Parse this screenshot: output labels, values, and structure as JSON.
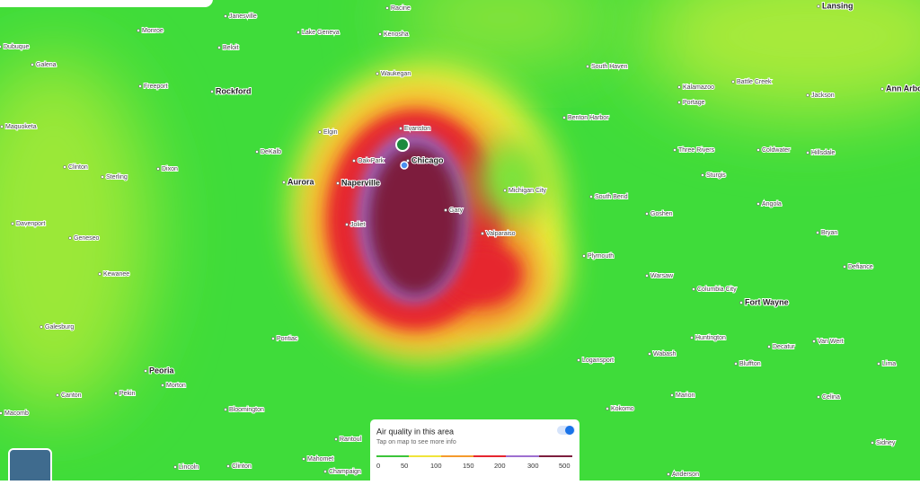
{
  "map": {
    "places": [
      "Janesville",
      "Racine",
      "Lansing",
      "Monroe",
      "Lake Geneva",
      "Kenosha",
      "Dubuque",
      "Beloit",
      "Galena",
      "South Haven",
      "Waukegan",
      "Freeport",
      "Rockford",
      "Kalamazoo",
      "Battle Creek",
      "Ann Arbor",
      "Jackson",
      "Portage",
      "Maquoketa",
      "Benton Harbor",
      "Evanston",
      "Elgin",
      "DeKalb",
      "Three Rivers",
      "Coldwater",
      "Hillsdale",
      "Oak Park",
      "Chicago",
      "Clinton",
      "Dixon",
      "Sterling",
      "Sturgis",
      "Aurora",
      "Naperville",
      "Michigan City",
      "South Bend",
      "Angola",
      "Gary",
      "Goshen",
      "Davenport",
      "Joliet",
      "Valparaiso",
      "Bryan",
      "Geneseo",
      "Plymouth",
      "Defiance",
      "Kewanee",
      "Warsaw",
      "Columbia City",
      "Fort Wayne",
      "Galesburg",
      "Pontiac",
      "Huntington",
      "Van Wert",
      "Decatur",
      "Wabash",
      "Logansport",
      "Bluffton",
      "Lima",
      "Peoria",
      "Morton",
      "Canton",
      "Pekin",
      "Marion",
      "Celina",
      "Macomb",
      "Bloomington",
      "Kokomo",
      "Rantoul",
      "Sidney",
      "Mahomet",
      "Champaign",
      "Lincoln",
      "Clinton",
      "Anderson"
    ]
  },
  "legend": {
    "title": "Air quality in this area",
    "subtitle": "Tap on map to see more info",
    "scale": [
      0,
      50,
      100,
      150,
      200,
      300,
      500
    ]
  }
}
